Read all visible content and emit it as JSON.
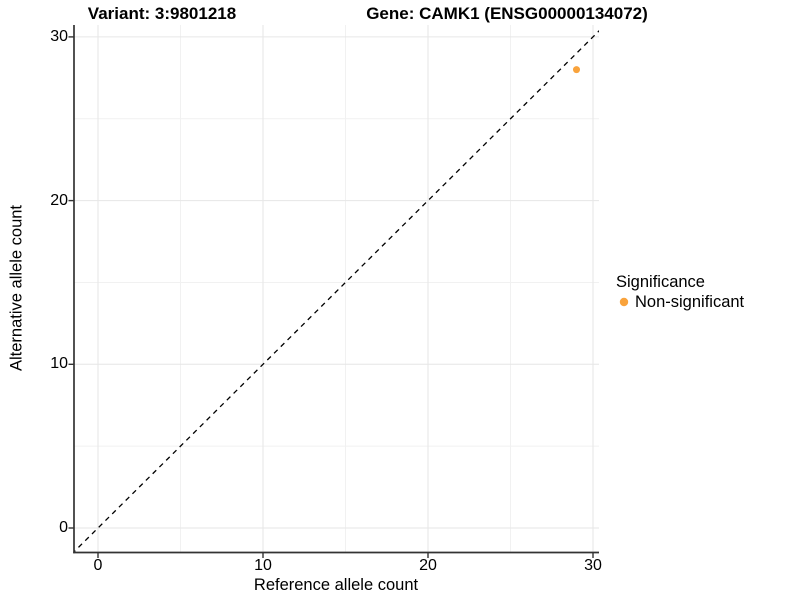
{
  "titles": {
    "variant": "Variant: 3:9801218",
    "gene": "Gene: CAMK1 (ENSG00000134072)"
  },
  "chart_data": {
    "type": "scatter",
    "xlabel": "Reference allele count",
    "ylabel": "Alternative allele count",
    "xlim": [
      -1.5,
      31
    ],
    "ylim": [
      -1.5,
      31
    ],
    "xticks": [
      "0",
      "10",
      "20",
      "30"
    ],
    "yticks": [
      "0",
      "10",
      "20",
      "30"
    ],
    "xtick_values": [
      0,
      10,
      20,
      30
    ],
    "ytick_values": [
      0,
      10,
      20,
      30
    ],
    "minor_xtick_values": [
      5,
      15,
      25
    ],
    "minor_ytick_values": [
      5,
      15,
      25
    ],
    "grid": true,
    "points": [
      {
        "x": 29,
        "y": 28,
        "series": "Non-significant"
      }
    ],
    "identity_line": {
      "style": "dashed",
      "label": "y = x",
      "from": [
        -2,
        -2
      ],
      "to": [
        32,
        32
      ],
      "color": "#000000"
    },
    "legend": {
      "title": "Significance",
      "position": "right",
      "items": [
        {
          "label": "Non-significant",
          "color": "#F9A33C"
        }
      ]
    },
    "colors": {
      "axis_line": "#333333",
      "grid_major": "#e6e6e6",
      "grid_minor": "#f1f1f1",
      "point": "#F9A33C"
    }
  }
}
